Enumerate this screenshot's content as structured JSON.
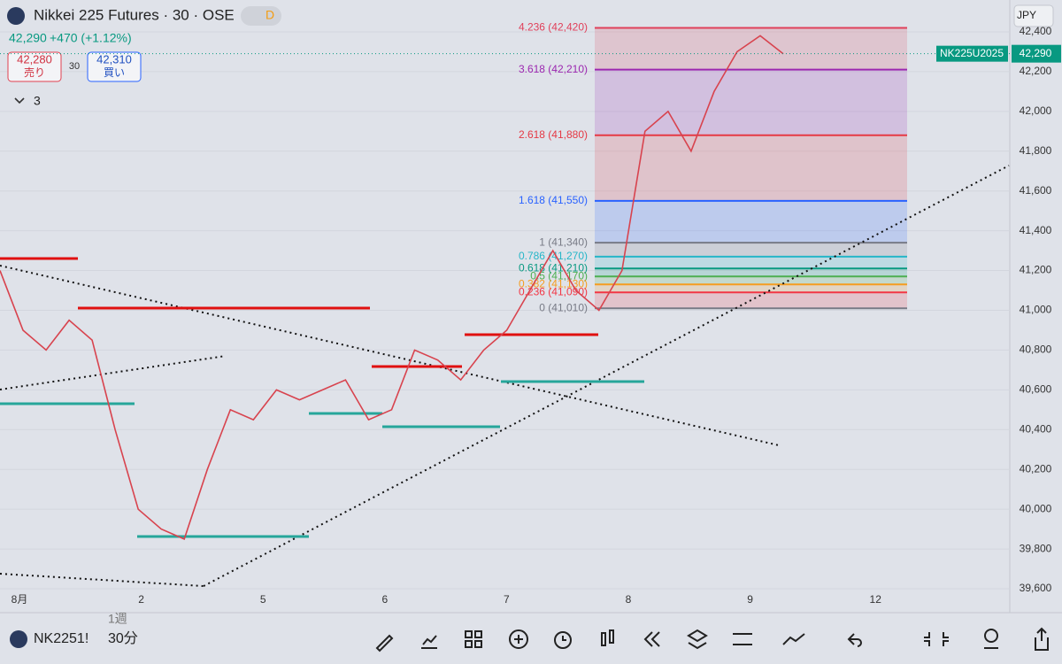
{
  "header": {
    "title": "Nikkei 225 Futures · 30 · OSE",
    "badge": "D",
    "last": "42,290",
    "change": "+470 (+1.12%)",
    "sell_price": "42,280",
    "sell_label": "売り",
    "spread": "30",
    "buy_price": "42,310",
    "buy_label": "買い",
    "indicators_count": "3"
  },
  "currency": "JPY",
  "symbol_tag": "NK225U2025",
  "chart_data": {
    "type": "line",
    "color": "#d8434e",
    "values": [
      41200,
      40900,
      40800,
      40950,
      40850,
      40400,
      40000,
      39900,
      39850,
      40200,
      40500,
      40450,
      40600,
      40550,
      40600,
      40650,
      40450,
      40500,
      40800,
      40750,
      40650,
      40800,
      40900,
      41100,
      41300,
      41100,
      41000,
      41200,
      41900,
      42000,
      41800,
      42100,
      42300,
      42380,
      42290
    ],
    "current_price": {
      "value": 42290,
      "label": "42,290"
    },
    "ylim": [
      39480,
      42560
    ],
    "yticks": [
      {
        "value": 39600,
        "label": "39,600"
      },
      {
        "value": 39800,
        "label": "39,800"
      },
      {
        "value": 40000,
        "label": "40,000"
      },
      {
        "value": 40200,
        "label": "40,200"
      },
      {
        "value": 40400,
        "label": "40,400"
      },
      {
        "value": 40600,
        "label": "40,600"
      },
      {
        "value": 40800,
        "label": "40,800"
      },
      {
        "value": 41000,
        "label": "41,000"
      },
      {
        "value": 41200,
        "label": "41,200"
      },
      {
        "value": 41400,
        "label": "41,400"
      },
      {
        "value": 41600,
        "label": "41,600"
      },
      {
        "value": 41800,
        "label": "41,800"
      },
      {
        "value": 42000,
        "label": "42,000"
      },
      {
        "value": 42200,
        "label": "42,200"
      },
      {
        "value": 42400,
        "label": "42,400"
      }
    ],
    "x_labels": [
      "8月",
      "2",
      "5",
      "6",
      "7",
      "8",
      "9",
      "12"
    ],
    "fib_levels": [
      {
        "label": "4.236 (42,420)",
        "value": 42420,
        "color": "#e0405a"
      },
      {
        "label": "3.618 (42,210)",
        "value": 42210,
        "color": "#9c27b0"
      },
      {
        "label": "2.618 (41,880)",
        "value": 41880,
        "color": "#e53945"
      },
      {
        "label": "1.618 (41,550)",
        "value": 41550,
        "color": "#2962ff"
      },
      {
        "label": "1 (41,340)",
        "value": 41340,
        "color": "#787b86"
      },
      {
        "label": "0.786 (41,270)",
        "value": 41270,
        "color": "#26b6c8"
      },
      {
        "label": "0.618 (41,210)",
        "value": 41210,
        "color": "#089981"
      },
      {
        "label": "0.5 (41,170)",
        "value": 41170,
        "color": "#4caf50"
      },
      {
        "label": "0.382 (41,130)",
        "value": 41130,
        "color": "#f59d20"
      },
      {
        "label": "0.236 (41,090)",
        "value": 41090,
        "color": "#f23645"
      },
      {
        "label": "0 (41,010)",
        "value": 41010,
        "color": "#787b86"
      }
    ]
  },
  "toolbar": {
    "symbol": "NK2251!",
    "interval": "30分",
    "alt_interval": "1週"
  }
}
